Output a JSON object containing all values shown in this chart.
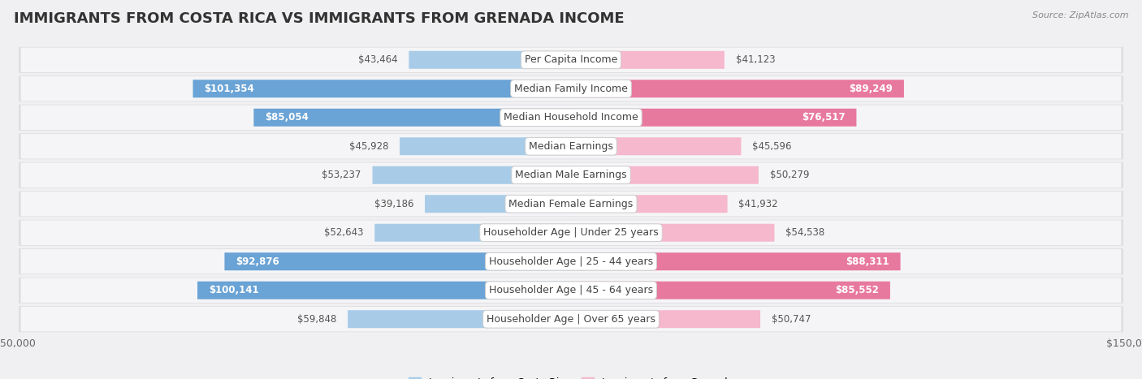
{
  "title": "IMMIGRANTS FROM COSTA RICA VS IMMIGRANTS FROM GRENADA INCOME",
  "source": "Source: ZipAtlas.com",
  "categories": [
    "Per Capita Income",
    "Median Family Income",
    "Median Household Income",
    "Median Earnings",
    "Median Male Earnings",
    "Median Female Earnings",
    "Householder Age | Under 25 years",
    "Householder Age | 25 - 44 years",
    "Householder Age | 45 - 64 years",
    "Householder Age | Over 65 years"
  ],
  "costa_rica_values": [
    43464,
    101354,
    85054,
    45928,
    53237,
    39186,
    52643,
    92876,
    100141,
    59848
  ],
  "grenada_values": [
    41123,
    89249,
    76517,
    45596,
    50279,
    41932,
    54538,
    88311,
    85552,
    50747
  ],
  "costa_rica_labels": [
    "$43,464",
    "$101,354",
    "$85,054",
    "$45,928",
    "$53,237",
    "$39,186",
    "$52,643",
    "$92,876",
    "$100,141",
    "$59,848"
  ],
  "grenada_labels": [
    "$41,123",
    "$89,249",
    "$76,517",
    "$45,596",
    "$50,279",
    "$41,932",
    "$54,538",
    "$88,311",
    "$85,552",
    "$50,747"
  ],
  "cr_color_large": "#6aa3d5",
  "cr_color_small": "#a8cce8",
  "gr_color_large": "#e8799e",
  "gr_color_small": "#f5b8cc",
  "max_value": 150000,
  "row_bg": "#ededef",
  "row_inner_bg": "#f7f7f9",
  "title_fontsize": 13,
  "label_fontsize": 8.5,
  "category_fontsize": 9,
  "legend_fontsize": 9,
  "large_threshold": 60000
}
